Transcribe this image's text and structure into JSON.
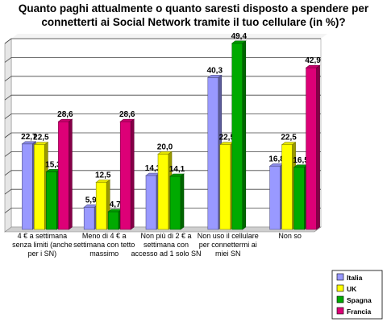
{
  "chart_data": {
    "type": "bar",
    "title_lines": [
      "Quanto paghi attualmente o quanto saresti disposto a spendere per",
      "connetterti ai Social Network tramite il tuo cellulare (in %)?"
    ],
    "categories": [
      [
        "4 € a settimana",
        "senza limiti (anche",
        "per i SN)"
      ],
      [
        "Meno di 4 € a",
        "settimana con tetto",
        "massimo"
      ],
      [
        "Non più di 2 € a",
        "settimana con",
        "accesso ad 1 solo SN"
      ],
      [
        "Non uso il cellulare",
        "per  connettermi ai",
        "miei SN"
      ],
      [
        "Non so"
      ]
    ],
    "series": [
      {
        "name": "Italia",
        "color": "#9999ff",
        "values": [
          22.7,
          5.9,
          14.3,
          40.3,
          16.8
        ]
      },
      {
        "name": "UK",
        "color": "#ffff00",
        "values": [
          22.5,
          12.5,
          20.0,
          22.5,
          22.5
        ]
      },
      {
        "name": "Spagna",
        "color": "#00aa00",
        "values": [
          15.3,
          4.7,
          14.1,
          49.4,
          16.5
        ]
      },
      {
        "name": "Francia",
        "color": "#dd0077",
        "values": [
          28.6,
          28.6,
          null,
          null,
          42.9
        ]
      }
    ],
    "data_labels": [
      [
        "22,7",
        "5,9",
        "14,3",
        "40,3",
        "16,8"
      ],
      [
        "22,5",
        "12,5",
        "20,0",
        "22,5",
        "22,5"
      ],
      [
        "15,3",
        "4,7",
        "14,1",
        "49,4",
        "16,5"
      ],
      [
        "28,6",
        "28,6",
        "",
        "",
        "42,9"
      ]
    ],
    "ylim": [
      0,
      50
    ],
    "grid": true,
    "legend_position": "right"
  }
}
